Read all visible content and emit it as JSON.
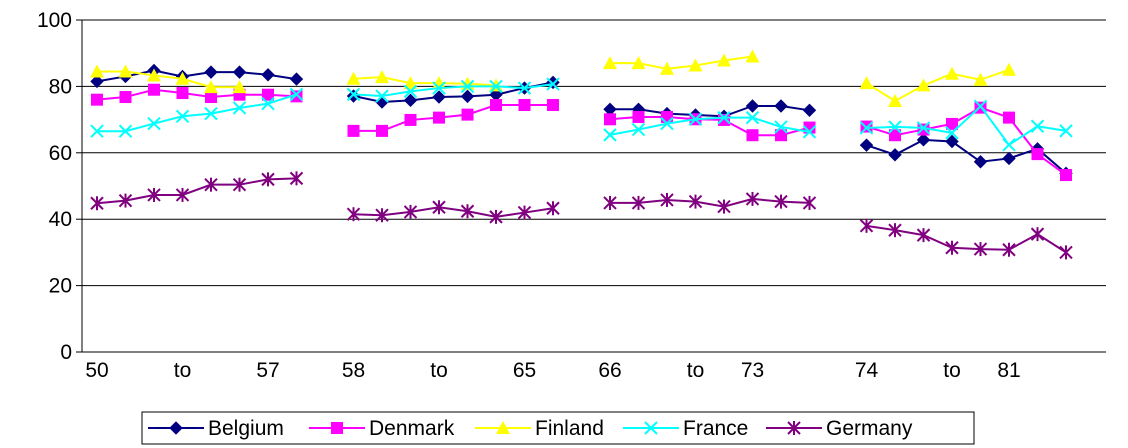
{
  "chart_data": {
    "type": "line",
    "title": "",
    "xlabel": "",
    "ylabel": "",
    "ylim": [
      0,
      100
    ],
    "yticks": [
      0,
      20,
      40,
      60,
      80,
      100
    ],
    "grid": "horizontal",
    "legend_placement": "bottom",
    "x_tick_labels": [
      {
        "label": "50",
        "index": 0
      },
      {
        "label": "to",
        "index": 3
      },
      {
        "label": "57",
        "index": 6
      },
      {
        "label": "58",
        "index": 9
      },
      {
        "label": "to",
        "index": 12
      },
      {
        "label": "65",
        "index": 15
      },
      {
        "label": "66",
        "index": 18
      },
      {
        "label": "to",
        "index": 21
      },
      {
        "label": "73",
        "index": 23
      },
      {
        "label": "74",
        "index": 27
      },
      {
        "label": "to",
        "index": 30
      },
      {
        "label": "81",
        "index": 32
      }
    ],
    "series": [
      {
        "name": "Belgium",
        "color": "#000080",
        "marker": "diamond",
        "values": [
          81.5,
          83,
          84.8,
          83,
          84.3,
          84.3,
          83.5,
          82.2,
          null,
          77.1,
          75.3,
          75.8,
          76.8,
          77.0,
          77.5,
          79.5,
          81.2,
          null,
          73.1,
          73.1,
          71.8,
          71.4,
          71.0,
          74.1,
          74.1,
          72.8,
          null,
          62.3,
          59.4,
          63.9,
          63.4,
          57.3,
          58.3,
          61.2,
          53.8
        ]
      },
      {
        "name": "Denmark",
        "color": "#FF00FF",
        "marker": "square",
        "values": [
          76.0,
          76.8,
          79.0,
          78.0,
          76.8,
          77.5,
          77.5,
          77.0,
          null,
          66.6,
          66.6,
          69.9,
          70.6,
          71.5,
          74.4,
          74.4,
          74.4,
          null,
          70.1,
          70.8,
          70.8,
          70.1,
          69.9,
          65.3,
          65.3,
          67.6,
          null,
          67.9,
          65.3,
          67.0,
          68.7,
          73.6,
          70.6,
          59.6,
          53.3
        ]
      },
      {
        "name": "Finland",
        "color": "#FFFF00",
        "marker": "triangle",
        "values": [
          84.5,
          84.5,
          83.3,
          82.3,
          79.8,
          79.8,
          null,
          null,
          null,
          82.3,
          82.8,
          81.0,
          81.0,
          80.8,
          80.3,
          null,
          null,
          null,
          87.0,
          87.0,
          85.3,
          86.3,
          87.8,
          89.0,
          null,
          null,
          null,
          81.0,
          75.6,
          80.3,
          83.8,
          82.0,
          85.0,
          null,
          null
        ]
      },
      {
        "name": "France",
        "color": "#00FFFF",
        "marker": "x",
        "values": [
          66.5,
          66.5,
          68.8,
          71.0,
          71.8,
          73.5,
          74.8,
          77.6,
          null,
          77.6,
          77.1,
          78.5,
          79.5,
          80.0,
          80.0,
          79.5,
          80.7,
          null,
          65.4,
          67.0,
          68.8,
          70.1,
          70.6,
          70.6,
          67.8,
          66.3,
          null,
          67.5,
          67.8,
          67.5,
          66.0,
          74.0,
          62.4,
          68.0,
          66.6
        ]
      },
      {
        "name": "Germany",
        "color": "#800080",
        "marker": "star",
        "values": [
          44.8,
          45.6,
          47.3,
          47.3,
          50.4,
          50.4,
          52.0,
          52.3,
          null,
          41.5,
          41.2,
          42.2,
          43.6,
          42.4,
          40.7,
          42.0,
          43.3,
          null,
          44.9,
          44.9,
          45.8,
          45.3,
          43.8,
          46.1,
          45.3,
          44.9,
          null,
          38.0,
          36.7,
          35.2,
          31.4,
          31.0,
          30.8,
          35.5,
          30.0
        ]
      }
    ]
  }
}
